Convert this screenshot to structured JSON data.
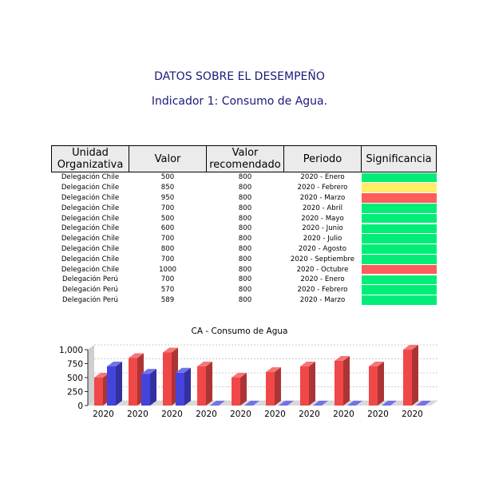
{
  "header": {
    "title": "DATOS SOBRE EL DESEMPEÑO",
    "subtitle": "Indicador 1: Consumo de Agua."
  },
  "table": {
    "columns": [
      "Unidad Organizativa",
      "Valor",
      "Valor recomendado",
      "Periodo",
      "Significancia"
    ],
    "rows": [
      {
        "unidad": "Delegación Chile",
        "valor": "500",
        "recomendado": "800",
        "periodo": "2020 - Enero",
        "significancia": "#00ee77"
      },
      {
        "unidad": "Delegación Chile",
        "valor": "850",
        "recomendado": "800",
        "periodo": "2020 - Febrero",
        "significancia": "#ffee66"
      },
      {
        "unidad": "Delegación Chile",
        "valor": "950",
        "recomendado": "800",
        "periodo": "2020 - Marzo",
        "significancia": "#ff5c5c"
      },
      {
        "unidad": "Delegación Chile",
        "valor": "700",
        "recomendado": "800",
        "periodo": "2020 - Abril",
        "significancia": "#00ee77"
      },
      {
        "unidad": "Delegación Chile",
        "valor": "500",
        "recomendado": "800",
        "periodo": "2020 - Mayo",
        "significancia": "#00ee77"
      },
      {
        "unidad": "Delegación Chile",
        "valor": "600",
        "recomendado": "800",
        "periodo": "2020 - Junio",
        "significancia": "#00ee77"
      },
      {
        "unidad": "Delegación Chile",
        "valor": "700",
        "recomendado": "800",
        "periodo": "2020 - Julio",
        "significancia": "#00ee77"
      },
      {
        "unidad": "Delegación Chile",
        "valor": "800",
        "recomendado": "800",
        "periodo": "2020 - Agosto",
        "significancia": "#00ee77"
      },
      {
        "unidad": "Delegación Chile",
        "valor": "700",
        "recomendado": "800",
        "periodo": "2020 - Septiembre",
        "significancia": "#00ee77"
      },
      {
        "unidad": "Delegación Chile",
        "valor": "1000",
        "recomendado": "800",
        "periodo": "2020 - Octubre",
        "significancia": "#ff5c5c"
      },
      {
        "unidad": "Delegación Perú",
        "valor": "700",
        "recomendado": "800",
        "periodo": "2020 - Enero",
        "significancia": "#00ee77"
      },
      {
        "unidad": "Delegación Perú",
        "valor": "570",
        "recomendado": "800",
        "periodo": "2020 - Febrero",
        "significancia": "#00ee77"
      },
      {
        "unidad": "Delegación Perú",
        "valor": "589",
        "recomendado": "800",
        "periodo": "2020 - Marzo",
        "significancia": "#00ee77"
      }
    ]
  },
  "chart_data": {
    "type": "bar",
    "title": "CA - Consumo de Agua",
    "categories": [
      "2020",
      "2020",
      "2020",
      "2020",
      "2020",
      "2020",
      "2020",
      "2020",
      "2020",
      "2020"
    ],
    "ylim": [
      0,
      1000
    ],
    "yticks": [
      "0",
      "250",
      "500",
      "750",
      "1,000"
    ],
    "grid": true,
    "series": [
      {
        "color": "#f04848",
        "values": [
          500,
          850,
          950,
          700,
          500,
          600,
          700,
          800,
          700,
          1000
        ]
      },
      {
        "color": "#4444dd",
        "values": [
          700,
          570,
          589,
          0,
          0,
          0,
          0,
          0,
          0,
          0
        ]
      }
    ]
  }
}
